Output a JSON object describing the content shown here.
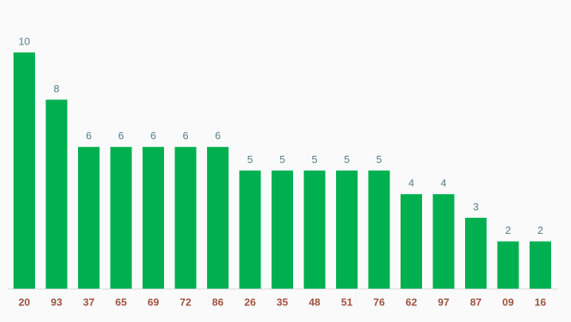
{
  "chart_data": {
    "type": "bar",
    "categories": [
      "20",
      "93",
      "37",
      "65",
      "69",
      "72",
      "86",
      "26",
      "35",
      "48",
      "51",
      "76",
      "62",
      "97",
      "87",
      "09",
      "16"
    ],
    "values": [
      10,
      8,
      6,
      6,
      6,
      6,
      6,
      5,
      5,
      5,
      5,
      5,
      4,
      4,
      3,
      2,
      2
    ],
    "color": "#00b050",
    "ylim": [
      0,
      10
    ]
  }
}
